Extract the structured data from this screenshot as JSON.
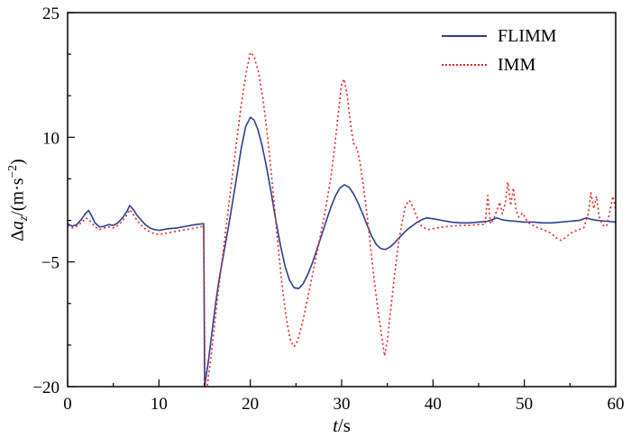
{
  "chart_data": {
    "type": "line",
    "title": "",
    "grid": false,
    "legend_position": "top-right",
    "xlim": [
      0,
      60
    ],
    "ylim": [
      -20,
      25
    ],
    "x_ticks": [
      0,
      10,
      20,
      30,
      40,
      50,
      60
    ],
    "y_ticks": [
      -20,
      -5,
      10,
      25
    ],
    "x_minor_step": 5,
    "y_minor_step": 5,
    "xlabel_parts": {
      "var": "t",
      "rest": "/s"
    },
    "ylabel_parts": {
      "prefix": "Δ",
      "var": "a",
      "sub": "z",
      "rest": "/(m·s",
      "sup": "−2",
      "close": ")"
    },
    "axis_color": "#000000",
    "series": [
      {
        "name": "FLIMM",
        "color": "#2b3f8f",
        "style": "solid",
        "points": [
          [
            0,
            -0.4
          ],
          [
            0.5,
            -0.7
          ],
          [
            1,
            -0.5
          ],
          [
            1.5,
            0.1
          ],
          [
            2,
            0.9
          ],
          [
            2.3,
            1.2
          ],
          [
            2.7,
            0.4
          ],
          [
            3,
            -0.3
          ],
          [
            3.5,
            -0.8
          ],
          [
            4,
            -0.7
          ],
          [
            4.5,
            -0.5
          ],
          [
            5,
            -0.6
          ],
          [
            5.5,
            -0.3
          ],
          [
            6,
            0.3
          ],
          [
            6.5,
            1.1
          ],
          [
            6.8,
            1.8
          ],
          [
            7.2,
            1.3
          ],
          [
            7.6,
            0.6
          ],
          [
            8,
            0.1
          ],
          [
            8.5,
            -0.5
          ],
          [
            9,
            -0.9
          ],
          [
            9.5,
            -1.1
          ],
          [
            10,
            -1.2
          ],
          [
            10.5,
            -1.1
          ],
          [
            11,
            -1.0
          ],
          [
            12,
            -0.9
          ],
          [
            13,
            -0.7
          ],
          [
            14,
            -0.5
          ],
          [
            14.9,
            -0.4
          ],
          [
            15,
            -20
          ],
          [
            15.4,
            -17
          ],
          [
            15.8,
            -13.5
          ],
          [
            16.2,
            -10
          ],
          [
            16.6,
            -7
          ],
          [
            17,
            -4.5
          ],
          [
            17.5,
            -1.5
          ],
          [
            18,
            1.8
          ],
          [
            18.5,
            5.2
          ],
          [
            19,
            8.6
          ],
          [
            19.5,
            11.3
          ],
          [
            20,
            12.4
          ],
          [
            20.4,
            12.1
          ],
          [
            20.8,
            11
          ],
          [
            21.3,
            9
          ],
          [
            21.8,
            6.3
          ],
          [
            22.3,
            3.2
          ],
          [
            22.8,
            0
          ],
          [
            23.3,
            -3
          ],
          [
            23.8,
            -5.5
          ],
          [
            24.3,
            -7.2
          ],
          [
            24.8,
            -8.1
          ],
          [
            25.3,
            -8.2
          ],
          [
            25.8,
            -7.6
          ],
          [
            26.3,
            -6.5
          ],
          [
            26.8,
            -5.1
          ],
          [
            27.3,
            -3.5
          ],
          [
            27.8,
            -1.8
          ],
          [
            28.3,
            -0.1
          ],
          [
            28.8,
            1.5
          ],
          [
            29.3,
            2.9
          ],
          [
            29.8,
            3.9
          ],
          [
            30.3,
            4.3
          ],
          [
            30.8,
            4.0
          ],
          [
            31.3,
            3.2
          ],
          [
            31.8,
            2.1
          ],
          [
            32.3,
            0.8
          ],
          [
            32.8,
            -0.6
          ],
          [
            33.3,
            -1.9
          ],
          [
            33.8,
            -2.9
          ],
          [
            34.3,
            -3.4
          ],
          [
            34.8,
            -3.5
          ],
          [
            35.3,
            -3.2
          ],
          [
            35.8,
            -2.7
          ],
          [
            36.3,
            -2.1
          ],
          [
            36.8,
            -1.5
          ],
          [
            37.3,
            -1.0
          ],
          [
            37.8,
            -0.6
          ],
          [
            38.3,
            -0.2
          ],
          [
            38.8,
            0.1
          ],
          [
            39.3,
            0.3
          ],
          [
            40,
            0.2
          ],
          [
            41,
            0
          ],
          [
            42,
            -0.2
          ],
          [
            43,
            -0.3
          ],
          [
            44,
            -0.3
          ],
          [
            45,
            -0.2
          ],
          [
            46,
            -0.1
          ],
          [
            46.5,
            0.1
          ],
          [
            47,
            0.3
          ],
          [
            47.5,
            0.1
          ],
          [
            48,
            0
          ],
          [
            49,
            -0.1
          ],
          [
            50,
            -0.2
          ],
          [
            51,
            -0.2
          ],
          [
            52,
            -0.3
          ],
          [
            53,
            -0.3
          ],
          [
            54,
            -0.2
          ],
          [
            55,
            -0.1
          ],
          [
            56,
            0
          ],
          [
            56.8,
            0.3
          ],
          [
            57.4,
            0.1
          ],
          [
            58,
            0
          ],
          [
            59,
            -0.1
          ],
          [
            60,
            -0.2
          ]
        ]
      },
      {
        "name": "IMM",
        "color": "#e82222",
        "style": "dotted",
        "points": [
          [
            0,
            -0.6
          ],
          [
            0.5,
            -0.9
          ],
          [
            1,
            -0.7
          ],
          [
            1.5,
            -0.3
          ],
          [
            2,
            0.3
          ],
          [
            2.5,
            -0.1
          ],
          [
            3,
            -0.8
          ],
          [
            3.5,
            -1.1
          ],
          [
            4,
            -0.9
          ],
          [
            4.5,
            -0.8
          ],
          [
            5,
            -0.9
          ],
          [
            5.5,
            -0.6
          ],
          [
            6,
            -0.1
          ],
          [
            6.5,
            0.7
          ],
          [
            6.8,
            1.3
          ],
          [
            7.2,
            0.7
          ],
          [
            7.6,
            0
          ],
          [
            8,
            -0.5
          ],
          [
            8.5,
            -1.0
          ],
          [
            9,
            -1.4
          ],
          [
            9.5,
            -1.6
          ],
          [
            10,
            -1.7
          ],
          [
            10.5,
            -1.6
          ],
          [
            11,
            -1.5
          ],
          [
            12,
            -1.3
          ],
          [
            13,
            -1.1
          ],
          [
            14,
            -0.9
          ],
          [
            14.9,
            -0.7
          ],
          [
            15.05,
            -19.5
          ],
          [
            15.3,
            -19.8
          ],
          [
            15.7,
            -16.5
          ],
          [
            16.1,
            -12.5
          ],
          [
            16.5,
            -8.5
          ],
          [
            17,
            -4
          ],
          [
            17.5,
            0.5
          ],
          [
            18,
            5
          ],
          [
            18.5,
            9.5
          ],
          [
            19,
            13.8
          ],
          [
            19.5,
            17.5
          ],
          [
            20,
            20.2
          ],
          [
            20.4,
            19.8
          ],
          [
            20.9,
            17.8
          ],
          [
            21.4,
            14.5
          ],
          [
            21.9,
            10
          ],
          [
            22.4,
            4.5
          ],
          [
            22.9,
            -1.5
          ],
          [
            23.4,
            -7
          ],
          [
            23.9,
            -11.5
          ],
          [
            24.4,
            -14.5
          ],
          [
            24.8,
            -15.2
          ],
          [
            25.2,
            -14.4
          ],
          [
            25.6,
            -12.8
          ],
          [
            26,
            -10.8
          ],
          [
            26.5,
            -8.2
          ],
          [
            27,
            -5.5
          ],
          [
            27.5,
            -2.8
          ],
          [
            28,
            0
          ],
          [
            28.4,
            2.4
          ],
          [
            28.8,
            5
          ],
          [
            29.2,
            8.5
          ],
          [
            29.6,
            12.5
          ],
          [
            30,
            16.5
          ],
          [
            30.3,
            17
          ],
          [
            30.6,
            15
          ],
          [
            31,
            11.5
          ],
          [
            31.3,
            9.3
          ],
          [
            31.7,
            8.6
          ],
          [
            32,
            7
          ],
          [
            32.4,
            4
          ],
          [
            32.8,
            0.5
          ],
          [
            33.2,
            -3.5
          ],
          [
            33.6,
            -7.5
          ],
          [
            34,
            -11
          ],
          [
            34.4,
            -14
          ],
          [
            34.7,
            -16.3
          ],
          [
            35,
            -14.5
          ],
          [
            35.4,
            -10.5
          ],
          [
            35.8,
            -6.5
          ],
          [
            36.2,
            -3
          ],
          [
            36.6,
            -0.3
          ],
          [
            37,
            1.8
          ],
          [
            37.4,
            2.4
          ],
          [
            37.8,
            1.7
          ],
          [
            38.2,
            0.5
          ],
          [
            38.6,
            -0.5
          ],
          [
            39,
            -0.9
          ],
          [
            39.5,
            -1.1
          ],
          [
            40,
            -1.0
          ],
          [
            41,
            -0.8
          ],
          [
            42,
            -0.7
          ],
          [
            43,
            -0.6
          ],
          [
            44,
            -0.6
          ],
          [
            45,
            -0.5
          ],
          [
            45.7,
            -0.5
          ],
          [
            46,
            3.0
          ],
          [
            46.3,
            -0.4
          ],
          [
            46.7,
            0.3
          ],
          [
            47,
            1.2
          ],
          [
            47.3,
            2.2
          ],
          [
            47.6,
            0.8
          ],
          [
            47.9,
            2.0
          ],
          [
            48.2,
            4.6
          ],
          [
            48.5,
            1.8
          ],
          [
            48.8,
            3.9
          ],
          [
            49.1,
            1.2
          ],
          [
            49.4,
            0.4
          ],
          [
            49.8,
            0.9
          ],
          [
            50.2,
            0.1
          ],
          [
            50.6,
            -0.4
          ],
          [
            51,
            -0.6
          ],
          [
            51.5,
            -0.9
          ],
          [
            52,
            -1.1
          ],
          [
            52.5,
            -1.3
          ],
          [
            53,
            -1.6
          ],
          [
            53.5,
            -2.1
          ],
          [
            54,
            -2.4
          ],
          [
            54.5,
            -2.1
          ],
          [
            55,
            -1.6
          ],
          [
            55.5,
            -1.3
          ],
          [
            56,
            -1.1
          ],
          [
            56.5,
            -0.9
          ],
          [
            57,
            0.8
          ],
          [
            57.3,
            3.3
          ],
          [
            57.6,
            1.4
          ],
          [
            57.9,
            2.9
          ],
          [
            58.2,
            0.4
          ],
          [
            58.6,
            -0.6
          ],
          [
            59,
            -0.7
          ],
          [
            59.4,
            1.2
          ],
          [
            59.7,
            2.9
          ],
          [
            60,
            1.3
          ]
        ]
      }
    ]
  }
}
